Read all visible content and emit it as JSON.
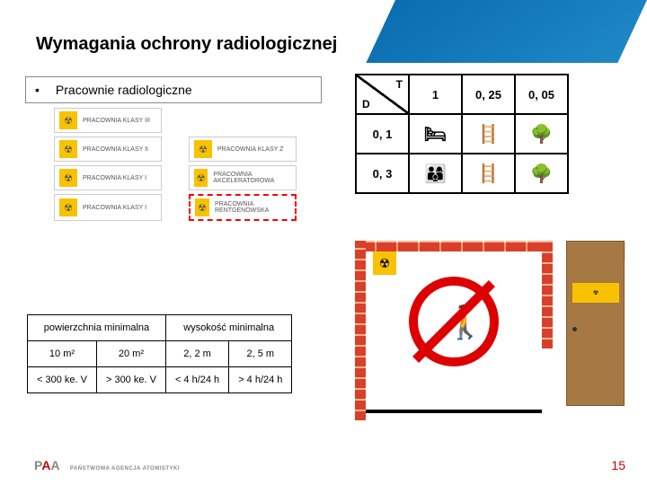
{
  "title": "Wymagania ochrony radiologicznej",
  "bullet": {
    "label": "Pracownie radiologiczne"
  },
  "labs": {
    "row0": [
      {
        "label": "PRACOWNIA KLASY III"
      }
    ],
    "row1": [
      {
        "label": "PRACOWNIA KLASY II"
      },
      {
        "label": "PRACOWNIA KLASY Z"
      }
    ],
    "row2": [
      {
        "label": "PRACOWNIA KLASY I"
      },
      {
        "label": "PRACOWNIA AKCELERATOROWA"
      }
    ],
    "row3": [
      {
        "label": "PRACOWNIA KLASY I"
      },
      {
        "label": "PRACOWNIA RENTGENOWSKA"
      }
    ]
  },
  "dt": {
    "d": "D",
    "t": "T",
    "h": [
      "1",
      "0, 25",
      "0, 05"
    ],
    "r1": "0, 1",
    "r2": "0, 3",
    "icons": {
      "bed": "🛏",
      "stairs": "🪜",
      "tree": "🌳",
      "people": "👨‍👩‍👦"
    }
  },
  "mintable": {
    "h1": "powierzchnia minimalna",
    "h2": "wysokość minimalna",
    "c": [
      "10 m²",
      "20 m²",
      "2, 2 m",
      "2, 5 m"
    ],
    "r": [
      "< 300 ke. V",
      "> 300 ke. V",
      "< 4 h/24 h",
      "> 4 h/24 h"
    ]
  },
  "trefoil": "☢",
  "logo": {
    "p": "P",
    "a": "A",
    "text": "PAŃSTWOWA AGENCJA ATOMISTYKI"
  },
  "pagenum": "15"
}
